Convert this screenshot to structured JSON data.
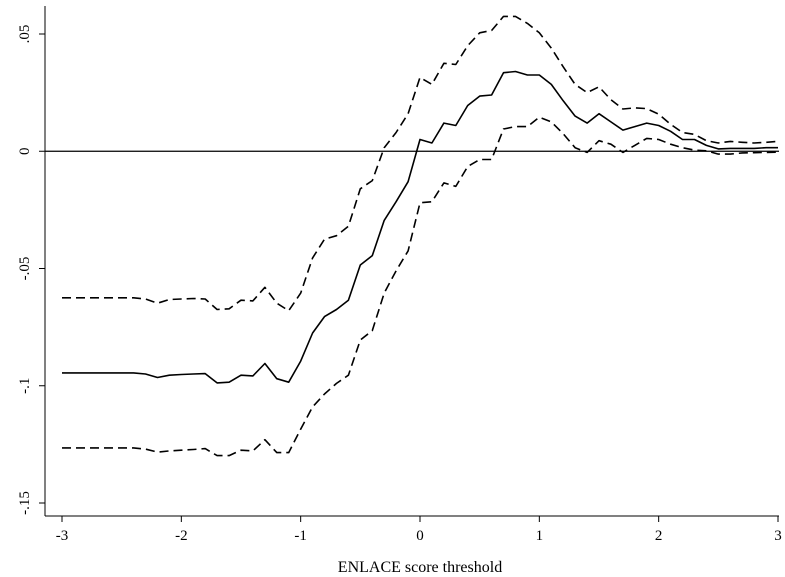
{
  "chart_data": {
    "type": "line",
    "title": "",
    "xlabel": "ENLACE score threshold",
    "ylabel": "",
    "xlim": [
      -3,
      3
    ],
    "ylim": [
      -0.15,
      0.05
    ],
    "x_ticks": [
      -3,
      -2,
      -1,
      0,
      1,
      2,
      3
    ],
    "x_tick_labels": [
      "-3",
      "-2",
      "-1",
      "0",
      "1",
      "2",
      "3"
    ],
    "y_ticks": [
      0.05,
      0,
      -0.05,
      -0.1,
      -0.15
    ],
    "y_tick_labels": [
      ".05",
      "0",
      "-.05",
      "-.1",
      "-.15"
    ],
    "reference_line_y": 0,
    "grid": false,
    "legend": "none",
    "series": [
      {
        "style": "solid",
        "x": [
          -3.0,
          -2.9,
          -2.8,
          -2.7,
          -2.6,
          -2.5,
          -2.4,
          -2.3,
          -2.2,
          -2.1,
          -2.0,
          -1.9,
          -1.8,
          -1.7,
          -1.6,
          -1.5,
          -1.4,
          -1.3,
          -1.2,
          -1.1,
          -1.0,
          -0.9,
          -0.8,
          -0.7,
          -0.6,
          -0.5,
          -0.4,
          -0.3,
          -0.2,
          -0.1,
          0.0,
          0.1,
          0.2,
          0.3,
          0.4,
          0.5,
          0.6,
          0.7,
          0.8,
          0.9,
          1.0,
          1.1,
          1.2,
          1.3,
          1.4,
          1.5,
          1.6,
          1.7,
          1.8,
          1.9,
          2.0,
          2.1,
          2.2,
          2.3,
          2.4,
          2.5,
          2.6,
          2.7,
          2.8,
          2.9,
          3.0
        ],
        "y": [
          -0.0945,
          -0.0945,
          -0.0945,
          -0.0945,
          -0.0945,
          -0.0945,
          -0.0945,
          -0.095,
          -0.0965,
          -0.0955,
          -0.0952,
          -0.095,
          -0.0948,
          -0.0988,
          -0.0985,
          -0.0955,
          -0.0958,
          -0.0905,
          -0.097,
          -0.0985,
          -0.0895,
          -0.0775,
          -0.0705,
          -0.0675,
          -0.0635,
          -0.0485,
          -0.0445,
          -0.0295,
          -0.0215,
          -0.013,
          0.005,
          0.0035,
          0.012,
          0.011,
          0.0195,
          0.0235,
          0.024,
          0.0335,
          0.034,
          0.0325,
          0.0325,
          0.0285,
          0.0215,
          0.015,
          0.012,
          0.016,
          0.0125,
          0.009,
          0.0105,
          0.012,
          0.011,
          0.0085,
          0.005,
          0.005,
          0.0025,
          0.001,
          0.0012,
          0.0012,
          0.0012,
          0.0015,
          0.0015
        ]
      },
      {
        "style": "dashed",
        "x": [
          -3.0,
          -2.9,
          -2.8,
          -2.7,
          -2.6,
          -2.5,
          -2.4,
          -2.3,
          -2.2,
          -2.1,
          -2.0,
          -1.9,
          -1.8,
          -1.7,
          -1.6,
          -1.5,
          -1.4,
          -1.3,
          -1.2,
          -1.1,
          -1.0,
          -0.9,
          -0.8,
          -0.7,
          -0.6,
          -0.5,
          -0.4,
          -0.3,
          -0.2,
          -0.1,
          0.0,
          0.1,
          0.2,
          0.3,
          0.4,
          0.5,
          0.6,
          0.7,
          0.8,
          0.9,
          1.0,
          1.1,
          1.2,
          1.3,
          1.4,
          1.5,
          1.6,
          1.7,
          1.8,
          1.9,
          2.0,
          2.1,
          2.2,
          2.3,
          2.4,
          2.5,
          2.6,
          2.7,
          2.8,
          2.9,
          3.0
        ],
        "y": [
          -0.0625,
          -0.0625,
          -0.0625,
          -0.0625,
          -0.0625,
          -0.0625,
          -0.0625,
          -0.063,
          -0.0648,
          -0.0632,
          -0.063,
          -0.0628,
          -0.063,
          -0.0675,
          -0.0672,
          -0.0635,
          -0.0638,
          -0.058,
          -0.0648,
          -0.068,
          -0.0605,
          -0.0455,
          -0.0375,
          -0.036,
          -0.032,
          -0.016,
          -0.0125,
          0.0015,
          0.008,
          0.016,
          0.0315,
          0.0285,
          0.0375,
          0.037,
          0.045,
          0.0505,
          0.0515,
          0.0575,
          0.0575,
          0.0545,
          0.0505,
          0.044,
          0.036,
          0.0285,
          0.025,
          0.0275,
          0.022,
          0.018,
          0.0185,
          0.0182,
          0.0158,
          0.0115,
          0.008,
          0.0072,
          0.0045,
          0.0035,
          0.0042,
          0.0038,
          0.0035,
          0.0038,
          0.0042
        ]
      },
      {
        "style": "dashed",
        "x": [
          -3.0,
          -2.9,
          -2.8,
          -2.7,
          -2.6,
          -2.5,
          -2.4,
          -2.3,
          -2.2,
          -2.1,
          -2.0,
          -1.9,
          -1.8,
          -1.7,
          -1.6,
          -1.5,
          -1.4,
          -1.3,
          -1.2,
          -1.1,
          -1.0,
          -0.9,
          -0.8,
          -0.7,
          -0.6,
          -0.5,
          -0.4,
          -0.3,
          -0.2,
          -0.1,
          0.0,
          0.1,
          0.2,
          0.3,
          0.4,
          0.5,
          0.6,
          0.7,
          0.8,
          0.9,
          1.0,
          1.1,
          1.2,
          1.3,
          1.4,
          1.5,
          1.6,
          1.7,
          1.8,
          1.9,
          2.0,
          2.1,
          2.2,
          2.3,
          2.4,
          2.5,
          2.6,
          2.7,
          2.8,
          2.9,
          3.0
        ],
        "y": [
          -0.1265,
          -0.1265,
          -0.1265,
          -0.1265,
          -0.1265,
          -0.1265,
          -0.1265,
          -0.127,
          -0.1283,
          -0.1278,
          -0.1275,
          -0.1272,
          -0.1268,
          -0.1298,
          -0.1298,
          -0.1275,
          -0.1278,
          -0.123,
          -0.1285,
          -0.1285,
          -0.1185,
          -0.109,
          -0.1035,
          -0.099,
          -0.0955,
          -0.0805,
          -0.0765,
          -0.0605,
          -0.051,
          -0.0425,
          -0.022,
          -0.0215,
          -0.0135,
          -0.015,
          -0.0065,
          -0.0035,
          -0.0035,
          0.0095,
          0.0105,
          0.0105,
          0.0145,
          0.0125,
          0.0075,
          0.0015,
          -0.0005,
          0.0045,
          0.003,
          -0.0005,
          0.0025,
          0.0055,
          0.005,
          0.003,
          0.0015,
          0.0005,
          0.0002,
          -0.0012,
          -0.0012,
          -0.0007,
          -0.0006,
          -0.0005,
          -0.0004
        ]
      }
    ]
  }
}
